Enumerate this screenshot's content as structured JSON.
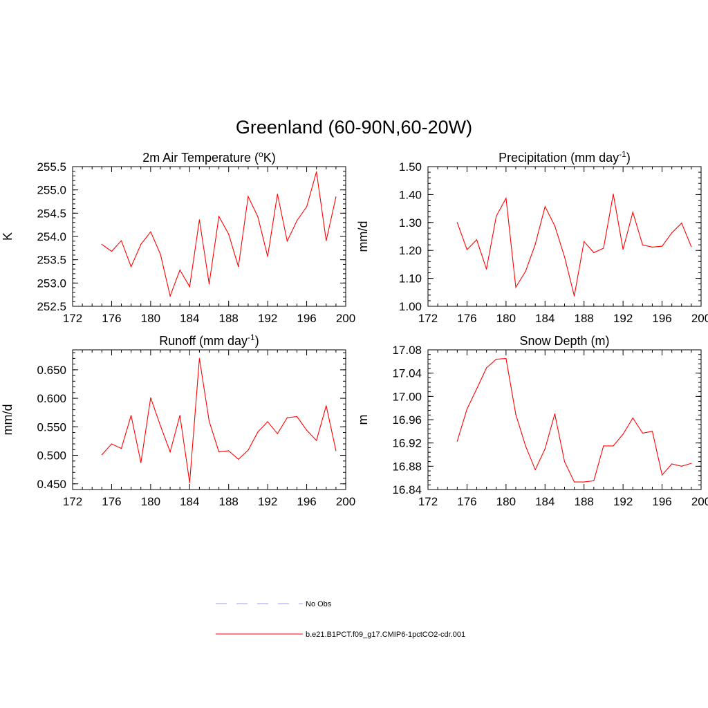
{
  "figure": {
    "title": "Greenland (60-90N,60-20W)"
  },
  "legend": {
    "entries": [
      {
        "label": "No Obs",
        "color": "#9999ff",
        "dashed": true
      },
      {
        "label": "b.e21.B1PCT.f09_g17.CMIP6-1pctCO2-cdr.001",
        "color": "#ff0000",
        "dashed": false
      }
    ]
  },
  "chart_data": [
    {
      "type": "line",
      "title": "2m Air Temperature (",
      "title_sup": "o",
      "title_tail": "K)",
      "ylabel": "K",
      "xlim": [
        172,
        200
      ],
      "ylim": [
        252.5,
        255.5
      ],
      "xticks": [
        "172",
        "176",
        "180",
        "184",
        "188",
        "192",
        "196",
        "200"
      ],
      "yticks": [
        "252.5",
        "253.0",
        "253.5",
        "254.0",
        "254.5",
        "255.0",
        "255.5"
      ],
      "series": [
        {
          "color": "#ff0000",
          "x": [
            175,
            176,
            177,
            178,
            179,
            180,
            181,
            182,
            183,
            184,
            185,
            186,
            187,
            188,
            189,
            190,
            191,
            192,
            193,
            194,
            195,
            196,
            197,
            198,
            199
          ],
          "y": [
            253.83,
            253.68,
            253.91,
            253.35,
            253.83,
            254.1,
            253.62,
            252.72,
            253.28,
            252.92,
            254.36,
            252.98,
            254.43,
            254.05,
            253.35,
            254.86,
            254.42,
            253.57,
            254.91,
            253.9,
            254.34,
            254.64,
            255.39,
            253.91,
            254.85
          ]
        }
      ]
    },
    {
      "type": "line",
      "title": "Precipitation (mm day",
      "title_sup": "-1",
      "title_tail": ")",
      "ylabel": "mm/d",
      "xlim": [
        172,
        200
      ],
      "ylim": [
        1.0,
        1.5
      ],
      "xticks": [
        "172",
        "176",
        "180",
        "184",
        "188",
        "192",
        "196",
        "200"
      ],
      "yticks": [
        "1.00",
        "1.10",
        "1.20",
        "1.30",
        "1.40",
        "1.50"
      ],
      "series": [
        {
          "color": "#ff0000",
          "x": [
            175,
            176,
            177,
            178,
            179,
            180,
            181,
            182,
            183,
            184,
            185,
            186,
            187,
            188,
            189,
            190,
            191,
            192,
            193,
            194,
            195,
            196,
            197,
            198,
            199
          ],
          "y": [
            1.3,
            1.203,
            1.238,
            1.133,
            1.323,
            1.387,
            1.068,
            1.125,
            1.222,
            1.357,
            1.288,
            1.177,
            1.037,
            1.232,
            1.192,
            1.208,
            1.402,
            1.204,
            1.337,
            1.22,
            1.212,
            1.215,
            1.263,
            1.298,
            1.213
          ]
        }
      ]
    },
    {
      "type": "line",
      "title": "Runoff (mm day",
      "title_sup": "-1",
      "title_tail": ")",
      "ylabel": "mm/d",
      "xlim": [
        172,
        200
      ],
      "ylim": [
        0.44,
        0.685
      ],
      "xticks": [
        "172",
        "176",
        "180",
        "184",
        "188",
        "192",
        "196",
        "200"
      ],
      "yticks": [
        "0.450",
        "0.500",
        "0.550",
        "0.600",
        "0.650"
      ],
      "series": [
        {
          "color": "#ff0000",
          "x": [
            175,
            176,
            177,
            178,
            179,
            180,
            181,
            182,
            183,
            184,
            185,
            186,
            187,
            188,
            189,
            190,
            191,
            192,
            193,
            194,
            195,
            196,
            197,
            198,
            199
          ],
          "y": [
            0.501,
            0.52,
            0.512,
            0.57,
            0.487,
            0.601,
            0.552,
            0.506,
            0.57,
            0.452,
            0.67,
            0.56,
            0.506,
            0.508,
            0.493,
            0.509,
            0.541,
            0.559,
            0.538,
            0.566,
            0.568,
            0.544,
            0.526,
            0.587,
            0.508
          ]
        }
      ]
    },
    {
      "type": "line",
      "title": "Snow Depth (m)",
      "title_sup": "",
      "title_tail": "",
      "ylabel": "m",
      "xlim": [
        172,
        200
      ],
      "ylim": [
        16.84,
        17.08
      ],
      "xticks": [
        "172",
        "176",
        "180",
        "184",
        "188",
        "192",
        "196",
        "200"
      ],
      "yticks": [
        "16.84",
        "16.88",
        "16.92",
        "16.96",
        "17.00",
        "17.04",
        "17.08"
      ],
      "series": [
        {
          "color": "#ff0000",
          "x": [
            175,
            176,
            177,
            178,
            179,
            180,
            181,
            182,
            183,
            184,
            185,
            186,
            187,
            188,
            189,
            190,
            191,
            192,
            193,
            194,
            195,
            196,
            197,
            198,
            199
          ],
          "y": [
            16.923,
            16.978,
            17.013,
            17.049,
            17.064,
            17.065,
            16.969,
            16.915,
            16.874,
            16.91,
            16.97,
            16.888,
            16.853,
            16.853,
            16.855,
            16.915,
            16.915,
            16.935,
            16.963,
            16.937,
            16.94,
            16.865,
            16.884,
            16.88,
            16.885
          ]
        }
      ]
    }
  ]
}
